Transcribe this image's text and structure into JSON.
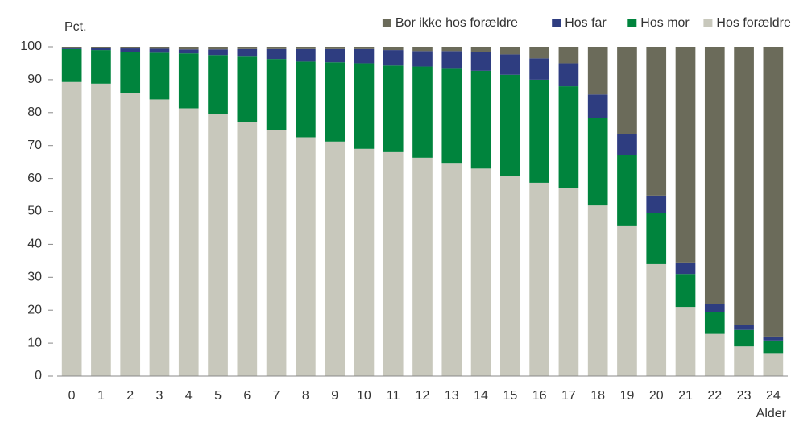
{
  "chart_data": {
    "type": "stacked_bar",
    "y_label": "Pct.",
    "x_label": "Alder",
    "categories": [
      "0",
      "1",
      "2",
      "3",
      "4",
      "5",
      "6",
      "7",
      "8",
      "9",
      "10",
      "11",
      "12",
      "13",
      "14",
      "15",
      "16",
      "17",
      "18",
      "19",
      "20",
      "21",
      "22",
      "23",
      "24"
    ],
    "series": [
      {
        "name": "Hos forældre",
        "color": "#c8c8bc",
        "values": [
          89.3,
          88.8,
          86,
          84,
          81.3,
          79.5,
          77.2,
          74.8,
          72.5,
          71.2,
          69,
          68,
          66.3,
          64.5,
          63,
          60.8,
          58.7,
          57,
          51.8,
          45.5,
          34,
          21,
          12.8,
          9,
          7
        ]
      },
      {
        "name": "Hos mor",
        "color": "#00843d",
        "values": [
          10,
          10.2,
          12.5,
          14.2,
          16.7,
          18,
          19.8,
          21.5,
          23,
          24.1,
          26,
          26.3,
          27.7,
          28.8,
          29.7,
          30.7,
          31.3,
          31,
          26.5,
          21.5,
          15.5,
          10,
          6.7,
          5,
          3.8
        ]
      },
      {
        "name": "Hos far",
        "color": "#2e3d80",
        "values": [
          0.4,
          0.6,
          1,
          1.2,
          1.2,
          1.7,
          2.3,
          3,
          3.8,
          4,
          4.3,
          4.7,
          4.7,
          5.4,
          5.6,
          6.2,
          6.5,
          7,
          7.2,
          6.5,
          5.3,
          3.5,
          2.5,
          1.5,
          1.2
        ]
      },
      {
        "name": "Bor ikke hos forældre",
        "color": "#6b6b5a",
        "values": [
          0.3,
          0.4,
          0.5,
          0.6,
          0.8,
          0.8,
          0.7,
          0.7,
          0.7,
          0.7,
          0.7,
          1,
          1.3,
          1.3,
          1.7,
          2.3,
          3.5,
          5,
          14.5,
          26.5,
          45.2,
          65.5,
          78,
          84.5,
          88
        ]
      }
    ],
    "ylim": [
      0,
      100
    ],
    "yticks": [
      0,
      10,
      20,
      30,
      40,
      50,
      60,
      70,
      80,
      90,
      100
    ],
    "grid": false
  }
}
